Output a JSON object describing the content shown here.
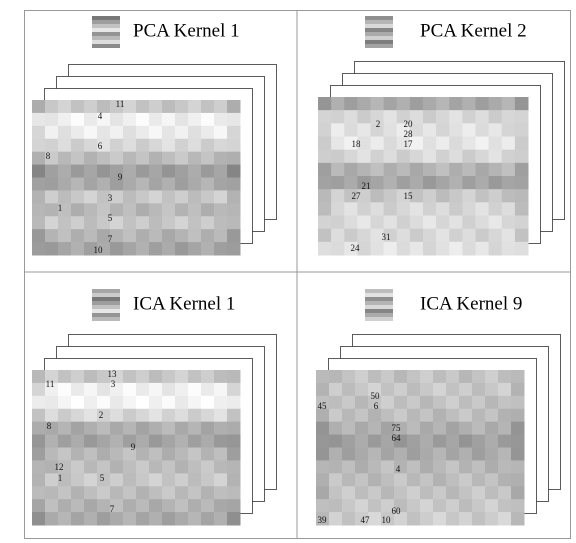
{
  "panels": [
    {
      "title": "PCA Kernel 1",
      "labels": [
        "11",
        "4",
        "6",
        "8",
        "9",
        "3",
        "1",
        "5",
        "7",
        "10"
      ]
    },
    {
      "title": "PCA Kernel 2",
      "labels": [
        "2",
        "20",
        "28",
        "18",
        "17",
        "21",
        "27",
        "15",
        "31",
        "24"
      ]
    },
    {
      "title": "ICA Kernel 1",
      "labels": [
        "13",
        "11",
        "3",
        "2",
        "8",
        "9",
        "12",
        "1",
        "5",
        "7"
      ]
    },
    {
      "title": "ICA Kernel 9",
      "labels": [
        "50",
        "45",
        "6",
        "75",
        "64",
        "4",
        "60",
        "39",
        "47",
        "10"
      ]
    }
  ]
}
